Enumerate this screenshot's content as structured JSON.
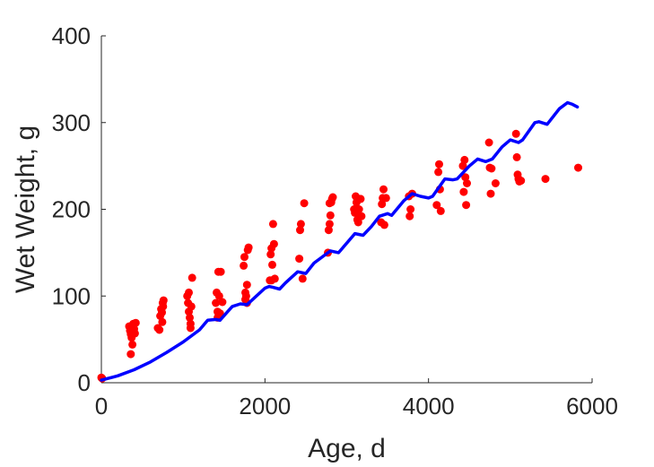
{
  "chart_data": {
    "type": "scatter",
    "title": "",
    "xlabel": "Age, d",
    "ylabel": "Wet Weight, g",
    "xlim": [
      0,
      6000
    ],
    "ylim": [
      0,
      400
    ],
    "xticks": [
      0,
      2000,
      4000,
      6000
    ],
    "yticks": [
      0,
      100,
      200,
      300,
      400
    ],
    "grid": false,
    "legend": "none",
    "series": [
      {
        "type": "scatter",
        "color": "#ff0000",
        "points": [
          [
            0,
            6
          ],
          [
            10,
            5
          ],
          [
            340,
            65
          ],
          [
            350,
            60
          ],
          [
            360,
            56
          ],
          [
            370,
            52
          ],
          [
            380,
            44
          ],
          [
            360,
            33
          ],
          [
            390,
            68
          ],
          [
            400,
            62
          ],
          [
            410,
            57
          ],
          [
            420,
            69
          ],
          [
            690,
            63
          ],
          [
            710,
            61
          ],
          [
            720,
            77
          ],
          [
            730,
            85
          ],
          [
            740,
            81
          ],
          [
            750,
            92
          ],
          [
            760,
            95
          ],
          [
            745,
            70
          ],
          [
            755,
            88
          ],
          [
            1050,
            100
          ],
          [
            1060,
            92
          ],
          [
            1070,
            82
          ],
          [
            1080,
            75
          ],
          [
            1090,
            68
          ],
          [
            1100,
            88
          ],
          [
            1110,
            121
          ],
          [
            1070,
            104
          ],
          [
            1090,
            63
          ],
          [
            1400,
            92
          ],
          [
            1410,
            104
          ],
          [
            1420,
            82
          ],
          [
            1430,
            128
          ],
          [
            1440,
            100
          ],
          [
            1450,
            80
          ],
          [
            1460,
            128
          ],
          [
            1420,
            75
          ],
          [
            1480,
            93
          ],
          [
            1740,
            135
          ],
          [
            1750,
            145
          ],
          [
            1760,
            104
          ],
          [
            1770,
            100
          ],
          [
            1780,
            113
          ],
          [
            1790,
            153
          ],
          [
            1800,
            156
          ],
          [
            1760,
            96
          ],
          [
            1780,
            92
          ],
          [
            2060,
            118
          ],
          [
            2070,
            148
          ],
          [
            2080,
            155
          ],
          [
            2090,
            136
          ],
          [
            2100,
            183
          ],
          [
            2110,
            160
          ],
          [
            2120,
            120
          ],
          [
            2080,
            118
          ],
          [
            2420,
            143
          ],
          [
            2430,
            176
          ],
          [
            2440,
            183
          ],
          [
            2460,
            120
          ],
          [
            2480,
            207
          ],
          [
            2770,
            150
          ],
          [
            2780,
            176
          ],
          [
            2790,
            183
          ],
          [
            2800,
            193
          ],
          [
            2810,
            208
          ],
          [
            2820,
            212
          ],
          [
            2830,
            214
          ],
          [
            2790,
            207
          ],
          [
            3090,
            200
          ],
          [
            3100,
            196
          ],
          [
            3110,
            215
          ],
          [
            3120,
            208
          ],
          [
            3130,
            188
          ],
          [
            3140,
            185
          ],
          [
            3150,
            200
          ],
          [
            3170,
            212
          ],
          [
            3180,
            192
          ],
          [
            3420,
            185
          ],
          [
            3440,
            213
          ],
          [
            3450,
            223
          ],
          [
            3460,
            182
          ],
          [
            3480,
            213
          ],
          [
            3430,
            206
          ],
          [
            3760,
            215
          ],
          [
            3770,
            192
          ],
          [
            3780,
            200
          ],
          [
            3800,
            218
          ],
          [
            4100,
            205
          ],
          [
            4120,
            243
          ],
          [
            4130,
            252
          ],
          [
            4140,
            223
          ],
          [
            4150,
            198
          ],
          [
            4420,
            250
          ],
          [
            4430,
            220
          ],
          [
            4440,
            257
          ],
          [
            4450,
            237
          ],
          [
            4460,
            205
          ],
          [
            4470,
            230
          ],
          [
            4740,
            277
          ],
          [
            4750,
            248
          ],
          [
            4760,
            218
          ],
          [
            4770,
            247
          ],
          [
            4820,
            230
          ],
          [
            5070,
            287
          ],
          [
            5080,
            260
          ],
          [
            5090,
            240
          ],
          [
            5100,
            235
          ],
          [
            5110,
            232
          ],
          [
            5130,
            233
          ],
          [
            5430,
            235
          ],
          [
            5830,
            248
          ]
        ]
      },
      {
        "type": "line",
        "color": "#0000ff",
        "points": [
          [
            0,
            3
          ],
          [
            200,
            8
          ],
          [
            400,
            15
          ],
          [
            600,
            24
          ],
          [
            800,
            35
          ],
          [
            1000,
            47
          ],
          [
            1200,
            61
          ],
          [
            1300,
            72
          ],
          [
            1400,
            73
          ],
          [
            1450,
            72
          ],
          [
            1600,
            88
          ],
          [
            1700,
            91
          ],
          [
            1780,
            90
          ],
          [
            2000,
            109
          ],
          [
            2050,
            111
          ],
          [
            2100,
            110
          ],
          [
            2180,
            108
          ],
          [
            2250,
            115
          ],
          [
            2400,
            128
          ],
          [
            2500,
            126
          ],
          [
            2600,
            138
          ],
          [
            2800,
            152
          ],
          [
            2900,
            150
          ],
          [
            3100,
            172
          ],
          [
            3200,
            170
          ],
          [
            3300,
            180
          ],
          [
            3400,
            192
          ],
          [
            3500,
            195
          ],
          [
            3550,
            193
          ],
          [
            3700,
            210
          ],
          [
            3800,
            218
          ],
          [
            3900,
            215
          ],
          [
            4000,
            213
          ],
          [
            4050,
            215
          ],
          [
            4200,
            235
          ],
          [
            4300,
            234
          ],
          [
            4350,
            235
          ],
          [
            4500,
            250
          ],
          [
            4600,
            258
          ],
          [
            4700,
            255
          ],
          [
            4780,
            258
          ],
          [
            4900,
            272
          ],
          [
            5000,
            280
          ],
          [
            5100,
            277
          ],
          [
            5150,
            280
          ],
          [
            5300,
            300
          ],
          [
            5350,
            301
          ],
          [
            5450,
            298
          ],
          [
            5600,
            316
          ],
          [
            5700,
            323
          ],
          [
            5760,
            321
          ],
          [
            5820,
            318
          ]
        ]
      }
    ]
  }
}
